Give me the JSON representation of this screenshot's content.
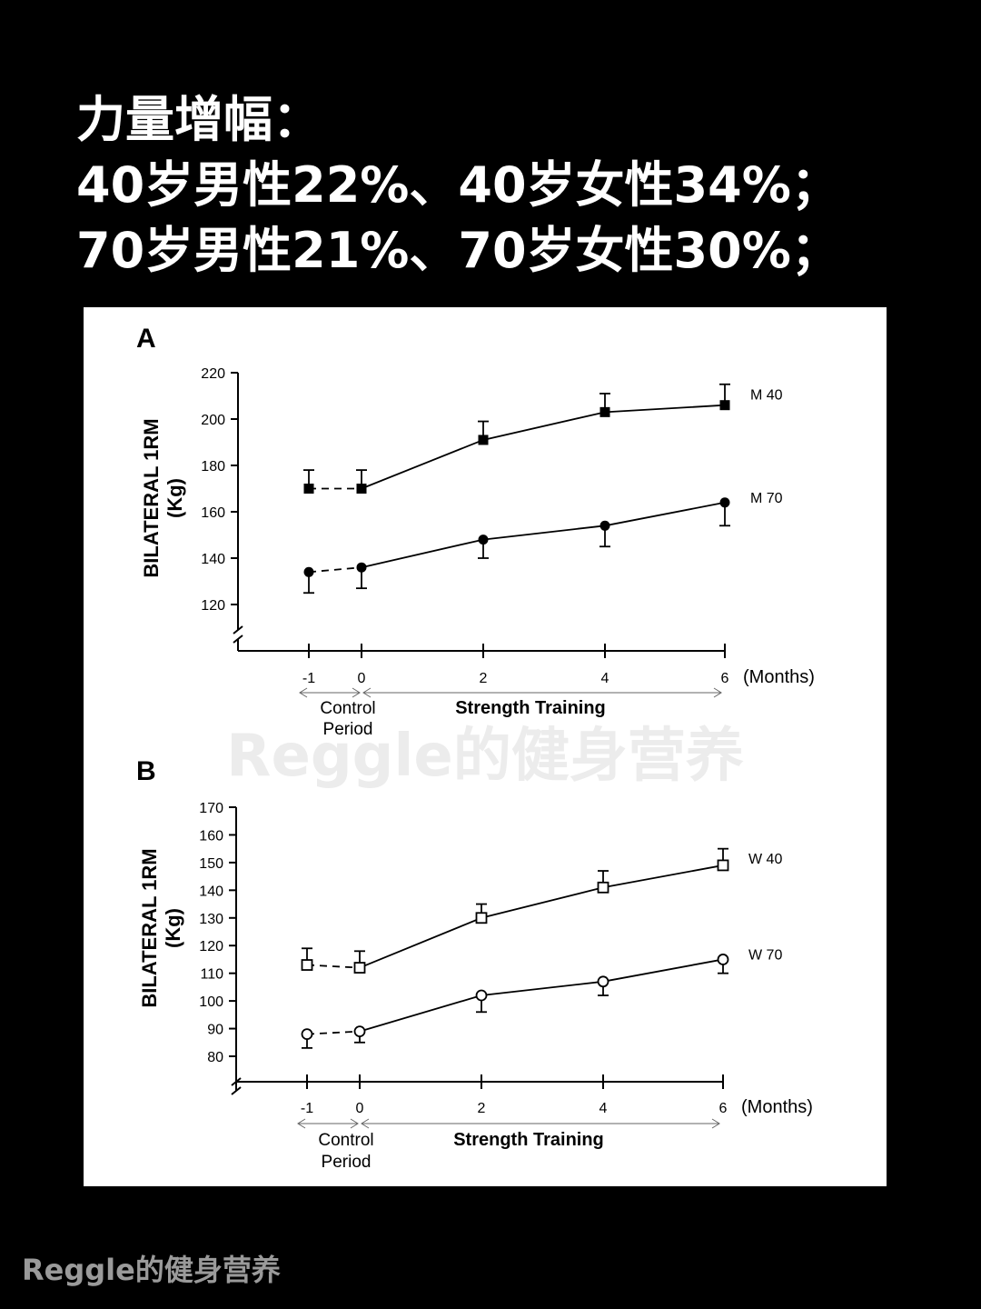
{
  "headline": {
    "line1": "力量增幅：",
    "line2": "40岁男性22%、40岁女性34%；",
    "line3": "70岁男性21%、70岁女性30%；"
  },
  "watermark": "Reggle的健身营养",
  "footer": "Reggle的健身营养",
  "chart_data": [
    {
      "type": "line",
      "panel": "A",
      "ylabel_line1": "BILATERAL 1RM",
      "ylabel_line2": "(Kg)",
      "ylim": [
        110,
        220
      ],
      "yticks": [
        120,
        140,
        160,
        180,
        200,
        220
      ],
      "x": [
        -1,
        0,
        2,
        4,
        6
      ],
      "x_tick_labels": [
        "-1",
        "0",
        "2",
        "4",
        "6"
      ],
      "x_unit_label": "(Months)",
      "period_labels": {
        "control_line1": "Control",
        "control_line2": "Period",
        "training": "Strength Training"
      },
      "series": [
        {
          "name": "M 40",
          "marker": "filled-square",
          "values": [
            170,
            170,
            191,
            203,
            206
          ],
          "errors": [
            8,
            8,
            8,
            8,
            9
          ]
        },
        {
          "name": "M 70",
          "marker": "filled-circle",
          "values": [
            134,
            136,
            148,
            154,
            164
          ],
          "errors": [
            9,
            9,
            8,
            9,
            10
          ]
        }
      ],
      "control_segment": "dashed",
      "legend_placement": "right"
    },
    {
      "type": "line",
      "panel": "B",
      "ylabel_line1": "BILATERAL 1RM",
      "ylabel_line2": "(Kg)",
      "ylim": [
        70,
        170
      ],
      "yticks": [
        80,
        90,
        100,
        110,
        120,
        130,
        140,
        150,
        160,
        170
      ],
      "x": [
        -1,
        0,
        2,
        4,
        6
      ],
      "x_tick_labels": [
        "-1",
        "0",
        "2",
        "4",
        "6"
      ],
      "x_unit_label": "(Months)",
      "period_labels": {
        "control_line1": "Control",
        "control_line2": "Period",
        "training": "Strength Training"
      },
      "series": [
        {
          "name": "W 40",
          "marker": "open-square",
          "values": [
            113,
            112,
            130,
            141,
            149
          ],
          "errors": [
            6,
            6,
            5,
            6,
            6
          ]
        },
        {
          "name": "W 70",
          "marker": "open-circle",
          "values": [
            88,
            89,
            102,
            107,
            115
          ],
          "errors": [
            5,
            4,
            6,
            5,
            5
          ]
        }
      ],
      "control_segment": "dashed",
      "legend_placement": "right"
    }
  ]
}
